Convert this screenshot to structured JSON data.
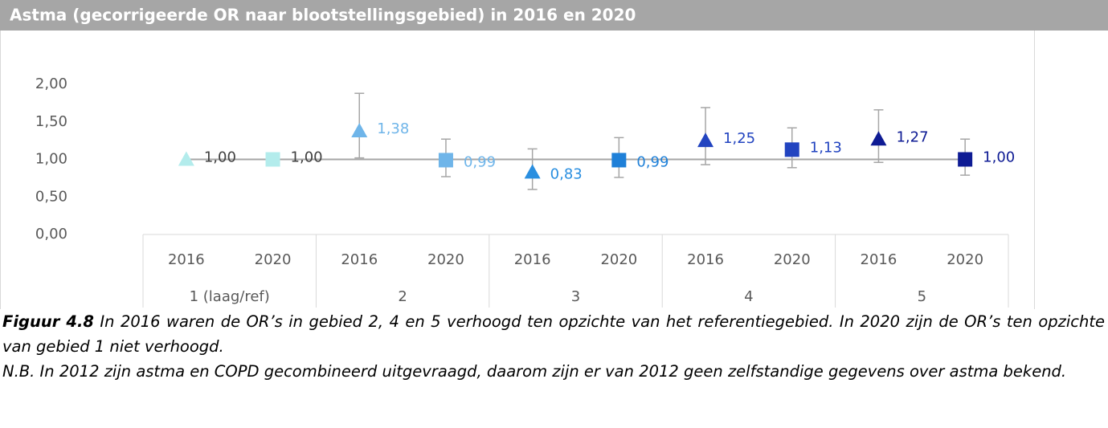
{
  "chart_data": {
    "type": "errorbar",
    "title": "Astma (gecorrigeerde OR naar blootstellingsgebied) in 2016 en 2020",
    "categories": [
      "2016",
      "2020",
      "2016",
      "2020",
      "2016",
      "2020",
      "2016",
      "2020",
      "2016",
      "2020"
    ],
    "groups": [
      "1 (laag/ref)",
      "2",
      "3",
      "4",
      "5"
    ],
    "values": [
      1.0,
      1.0,
      1.38,
      0.99,
      0.83,
      0.99,
      1.25,
      1.13,
      1.27,
      1.0
    ],
    "value_labels": [
      "1,00",
      "1,00",
      "1,38",
      "0,99",
      "0,83",
      "0,99",
      "1,25",
      "1,13",
      "1,27",
      "1,00"
    ],
    "lower": [
      null,
      null,
      1.02,
      0.77,
      0.6,
      0.76,
      0.93,
      0.89,
      0.96,
      0.79
    ],
    "upper": [
      null,
      null,
      1.88,
      1.27,
      1.14,
      1.29,
      1.69,
      1.42,
      1.66,
      1.27
    ],
    "markers": [
      "triangle",
      "square",
      "triangle",
      "square",
      "triangle",
      "square",
      "triangle",
      "square",
      "triangle",
      "square"
    ],
    "colors": [
      "#b3ecec",
      "#b3ecec",
      "#6fb5e9",
      "#6fb5e9",
      "#2a8fe0",
      "#1f80d8",
      "#2244c0",
      "#2244c0",
      "#0e1b94",
      "#0e1b94"
    ],
    "label_colors": [
      "#404040",
      "#404040",
      "#6fb5e9",
      "#6fb5e9",
      "#2a8fe0",
      "#1f80d8",
      "#2244c0",
      "#2244c0",
      "#0e1b94",
      "#0e1b94"
    ],
    "reference_line": 1,
    "ylim": [
      0,
      2
    ],
    "yticks": [
      {
        "value": 0,
        "label": "0,00"
      },
      {
        "value": 0.5,
        "label": "0,50"
      },
      {
        "value": 1,
        "label": "1,00"
      },
      {
        "value": 1.5,
        "label": "1,50"
      },
      {
        "value": 2,
        "label": "2,00"
      }
    ]
  },
  "caption": {
    "label": "Figuur 4.8",
    "text": "In 2016 waren de OR’s in gebied 2, 4 en 5 verhoogd ten opzichte van het referentiegebied. In 2020 zijn de OR’s ten opzichte van gebied 1 niet verhoogd.",
    "note": "N.B. In 2012 zijn astma en COPD gecombineerd uitgevraagd, daarom zijn er van 2012 geen zelfstandige gegevens over astma bekend."
  }
}
